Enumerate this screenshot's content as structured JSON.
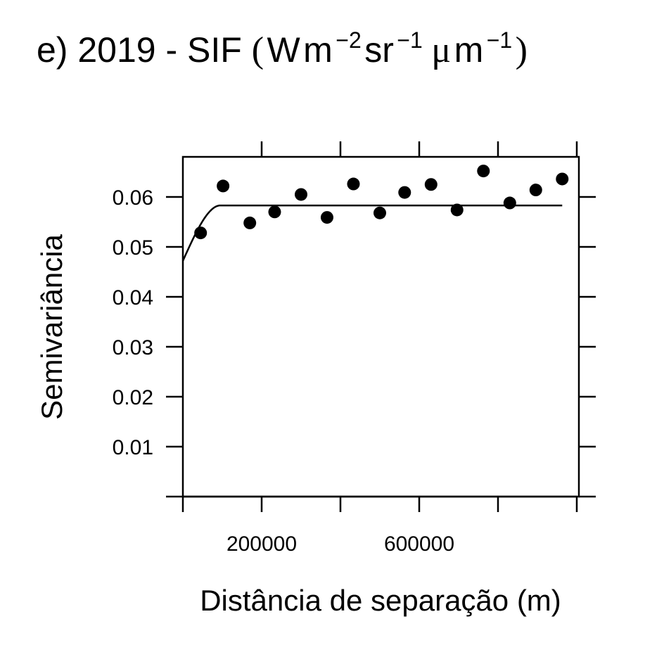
{
  "chart_data": {
    "type": "scatter",
    "title": {
      "prefix": "e) 2019 - SIF ",
      "open_paren": "(",
      "close_paren": ")",
      "unit_W": "W",
      "unit_m": "m",
      "exp_m": "−2",
      "unit_sr": " sr",
      "exp_sr": "−1",
      "unit_mu": "μ",
      "unit_m2": " m",
      "exp_m2": "−1"
    },
    "xlabel": "Distância de separação (m)",
    "ylabel": "Semivariância",
    "xlim": [
      0,
      1000000
    ],
    "ylim": [
      0,
      0.068
    ],
    "x_ticks": [
      0,
      200000,
      400000,
      600000,
      800000,
      1000000
    ],
    "x_tick_labels": [
      "",
      "200000",
      "",
      "600000",
      "",
      ""
    ],
    "y_ticks": [
      0.01,
      0.02,
      0.03,
      0.04,
      0.05,
      0.06
    ],
    "y_tick_labels": [
      "0.01",
      "0.02",
      "0.03",
      "0.04",
      "0.05",
      "0.06"
    ],
    "grid": false,
    "series": [
      {
        "type": "scatter",
        "x": [
          45000,
          102000,
          170000,
          233000,
          300000,
          366000,
          433000,
          500000,
          563000,
          630000,
          696000,
          763000,
          830000,
          896000,
          963000
        ],
        "y": [
          0.0528,
          0.0622,
          0.0548,
          0.057,
          0.0605,
          0.0559,
          0.0626,
          0.0568,
          0.0609,
          0.0625,
          0.0574,
          0.0652,
          0.0588,
          0.0614,
          0.0636
        ]
      },
      {
        "type": "line",
        "model": "spherical",
        "nugget": 0.0472,
        "sill": 0.0583,
        "range": 95000,
        "x_max": 963000
      }
    ]
  }
}
